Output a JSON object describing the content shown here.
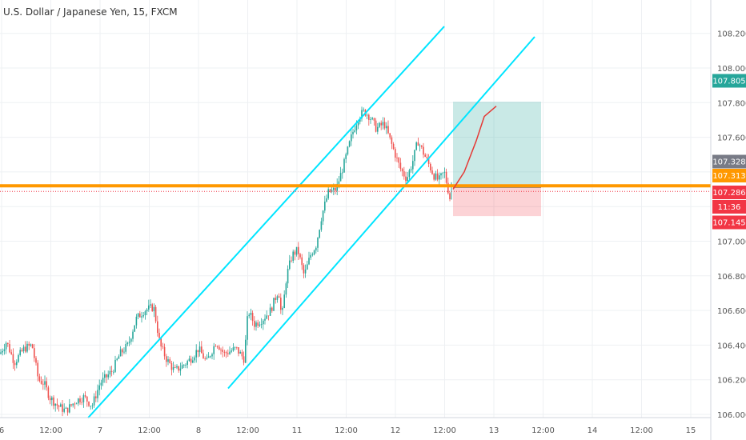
{
  "chart_data": {
    "type": "candlestick",
    "title": "U.S. Dollar / Japanese Yen, 15, FXCM",
    "ylim": [
      105.9,
      108.25
    ],
    "y_ticks": [
      "106.000",
      "106.200",
      "106.400",
      "106.600",
      "106.800",
      "107.000",
      "107.200",
      "107.400",
      "107.600",
      "107.800",
      "108.000",
      "108.200"
    ],
    "x_ticks": [
      "6",
      "12:00",
      "7",
      "12:00",
      "8",
      "12:00",
      "11",
      "12:00",
      "12",
      "12:00",
      "13",
      "12:00",
      "14",
      "12:00",
      "15"
    ],
    "grid": true,
    "price_path": [
      [
        0,
        106.35
      ],
      [
        8,
        106.42
      ],
      [
        18,
        106.3
      ],
      [
        30,
        106.38
      ],
      [
        40,
        106.4
      ],
      [
        48,
        106.2
      ],
      [
        55,
        106.18
      ],
      [
        62,
        106.1
      ],
      [
        72,
        106.05
      ],
      [
        82,
        106.02
      ],
      [
        95,
        106.08
      ],
      [
        105,
        106.1
      ],
      [
        115,
        106.05
      ],
      [
        125,
        106.18
      ],
      [
        140,
        106.25
      ],
      [
        150,
        106.35
      ],
      [
        160,
        106.4
      ],
      [
        170,
        106.55
      ],
      [
        180,
        106.6
      ],
      [
        192,
        106.62
      ],
      [
        200,
        106.4
      ],
      [
        208,
        106.32
      ],
      [
        218,
        106.25
      ],
      [
        228,
        106.28
      ],
      [
        238,
        106.32
      ],
      [
        248,
        106.38
      ],
      [
        258,
        106.3
      ],
      [
        270,
        106.42
      ],
      [
        280,
        106.35
      ],
      [
        295,
        106.38
      ],
      [
        305,
        106.32
      ],
      [
        310,
        106.6
      ],
      [
        318,
        106.52
      ],
      [
        328,
        106.55
      ],
      [
        338,
        106.6
      ],
      [
        348,
        106.72
      ],
      [
        352,
        106.55
      ],
      [
        358,
        106.8
      ],
      [
        365,
        106.92
      ],
      [
        372,
        106.95
      ],
      [
        380,
        106.8
      ],
      [
        388,
        106.92
      ],
      [
        395,
        106.98
      ],
      [
        402,
        107.15
      ],
      [
        410,
        107.28
      ],
      [
        420,
        107.3
      ],
      [
        430,
        107.45
      ],
      [
        440,
        107.62
      ],
      [
        448,
        107.72
      ],
      [
        455,
        107.75
      ],
      [
        462,
        107.72
      ],
      [
        470,
        107.65
      ],
      [
        480,
        107.68
      ],
      [
        490,
        107.55
      ],
      [
        500,
        107.42
      ],
      [
        508,
        107.36
      ],
      [
        515,
        107.45
      ],
      [
        522,
        107.58
      ],
      [
        528,
        107.52
      ],
      [
        535,
        107.45
      ],
      [
        542,
        107.38
      ],
      [
        548,
        107.35
      ],
      [
        555,
        107.4
      ],
      [
        562,
        107.25
      ]
    ],
    "last_candle": {
      "open": 107.32,
      "close": 107.31
    },
    "channel_lines": [
      [
        [
          110,
          105.98
        ],
        [
          555,
          108.24
        ]
      ],
      [
        [
          285,
          106.15
        ],
        [
          668,
          108.18
        ]
      ]
    ],
    "horizontal_level": 107.315,
    "position": {
      "entry": 107.31,
      "target": 107.805,
      "stop": 107.145
    },
    "projected_path": [
      [
        566,
        107.3
      ],
      [
        580,
        107.4
      ],
      [
        595,
        107.58
      ],
      [
        605,
        107.72
      ],
      [
        620,
        107.78
      ]
    ],
    "price_labels": [
      {
        "text": "107.805",
        "value": 107.805,
        "color": "#26a69a"
      },
      {
        "text": "107.328",
        "value": 107.328,
        "color": "#787b86"
      },
      {
        "text": "107.313",
        "value": 107.313,
        "color": "#ff9800"
      },
      {
        "text": "107.286",
        "value": 107.286,
        "color": "#f23645"
      },
      {
        "text": "11:36",
        "value": 107.21,
        "color": "#f23645"
      },
      {
        "text": "107.145",
        "value": 107.145,
        "color": "#f23645"
      }
    ]
  }
}
